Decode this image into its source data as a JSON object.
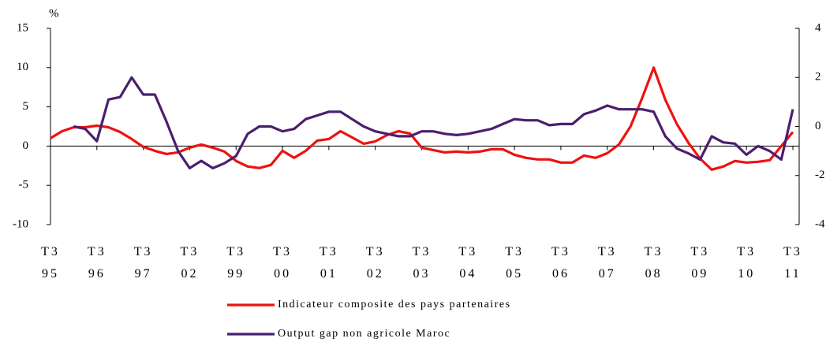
{
  "chart_data": {
    "type": "line",
    "y_label": "%",
    "categories": [
      "T3\n95",
      null,
      null,
      null,
      "T3\n96",
      null,
      null,
      null,
      "T3\n97",
      null,
      null,
      null,
      "T3\n02",
      null,
      null,
      null,
      "T3\n99",
      null,
      null,
      null,
      "T3\n00",
      null,
      null,
      null,
      "T3\n01",
      null,
      null,
      null,
      "T3\n02",
      null,
      null,
      null,
      "T3\n03",
      null,
      null,
      null,
      "T3\n04",
      null,
      null,
      null,
      "T3\n05",
      null,
      null,
      null,
      "T3\n06",
      null,
      null,
      null,
      "T3\n07",
      null,
      null,
      null,
      "T3\n08",
      null,
      null,
      null,
      "T3\n09",
      null,
      null,
      null,
      "T3\n10",
      null,
      null,
      null,
      "T3\n11"
    ],
    "series": [
      {
        "name": "Indicateur composite des pays partenaires",
        "color": "#ee1111",
        "axis": "y",
        "values": [
          1.0,
          1.9,
          2.4,
          2.4,
          2.6,
          2.4,
          1.8,
          0.9,
          -0.1,
          -0.6,
          -1.0,
          -0.8,
          -0.2,
          0.2,
          -0.2,
          -0.7,
          -1.9,
          -2.6,
          -2.8,
          -2.4,
          -0.6,
          -1.5,
          -0.6,
          0.7,
          0.9,
          1.9,
          1.1,
          0.3,
          0.6,
          1.4,
          1.9,
          1.6,
          -0.2,
          -0.5,
          -0.8,
          -0.7,
          -0.8,
          -0.7,
          -0.4,
          -0.4,
          -1.1,
          -1.5,
          -1.7,
          -1.7,
          -2.1,
          -2.1,
          -1.2,
          -1.5,
          -0.9,
          0.2,
          2.5,
          6.1,
          10.0,
          5.9,
          2.8,
          0.4,
          -1.6,
          -3.0,
          -2.6,
          -1.9,
          -2.1,
          -2.0,
          -1.8,
          0.0,
          1.8
        ]
      },
      {
        "name": "Output gap non agricole Maroc",
        "color": "#4b1e6e",
        "axis": "y2",
        "values": [
          null,
          null,
          0.0,
          -0.1,
          -0.6,
          1.1,
          1.2,
          2.0,
          1.3,
          1.3,
          0.2,
          -1.0,
          -1.7,
          -1.4,
          -1.7,
          -1.5,
          -1.2,
          -0.3,
          0.0,
          0.0,
          -0.2,
          -0.1,
          0.3,
          0.45,
          0.6,
          0.6,
          0.3,
          0.0,
          -0.2,
          -0.3,
          -0.4,
          -0.4,
          -0.2,
          -0.2,
          -0.3,
          -0.35,
          -0.3,
          -0.2,
          -0.1,
          0.1,
          0.3,
          0.25,
          0.25,
          0.05,
          0.1,
          0.1,
          0.5,
          0.65,
          0.85,
          0.7,
          0.7,
          0.7,
          0.6,
          -0.4,
          -0.9,
          -1.1,
          -1.35,
          -0.4,
          -0.65,
          -0.7,
          -1.15,
          -0.8,
          -1.0,
          -1.35,
          0.7
        ]
      }
    ],
    "ylim": [
      -10,
      15
    ],
    "yticks": [
      -10,
      -5,
      0,
      5,
      10,
      15
    ],
    "y2lim": [
      -4,
      4
    ],
    "y2ticks": [
      -4,
      -2,
      0,
      2,
      4
    ],
    "grid": false,
    "legend": "bottom"
  }
}
